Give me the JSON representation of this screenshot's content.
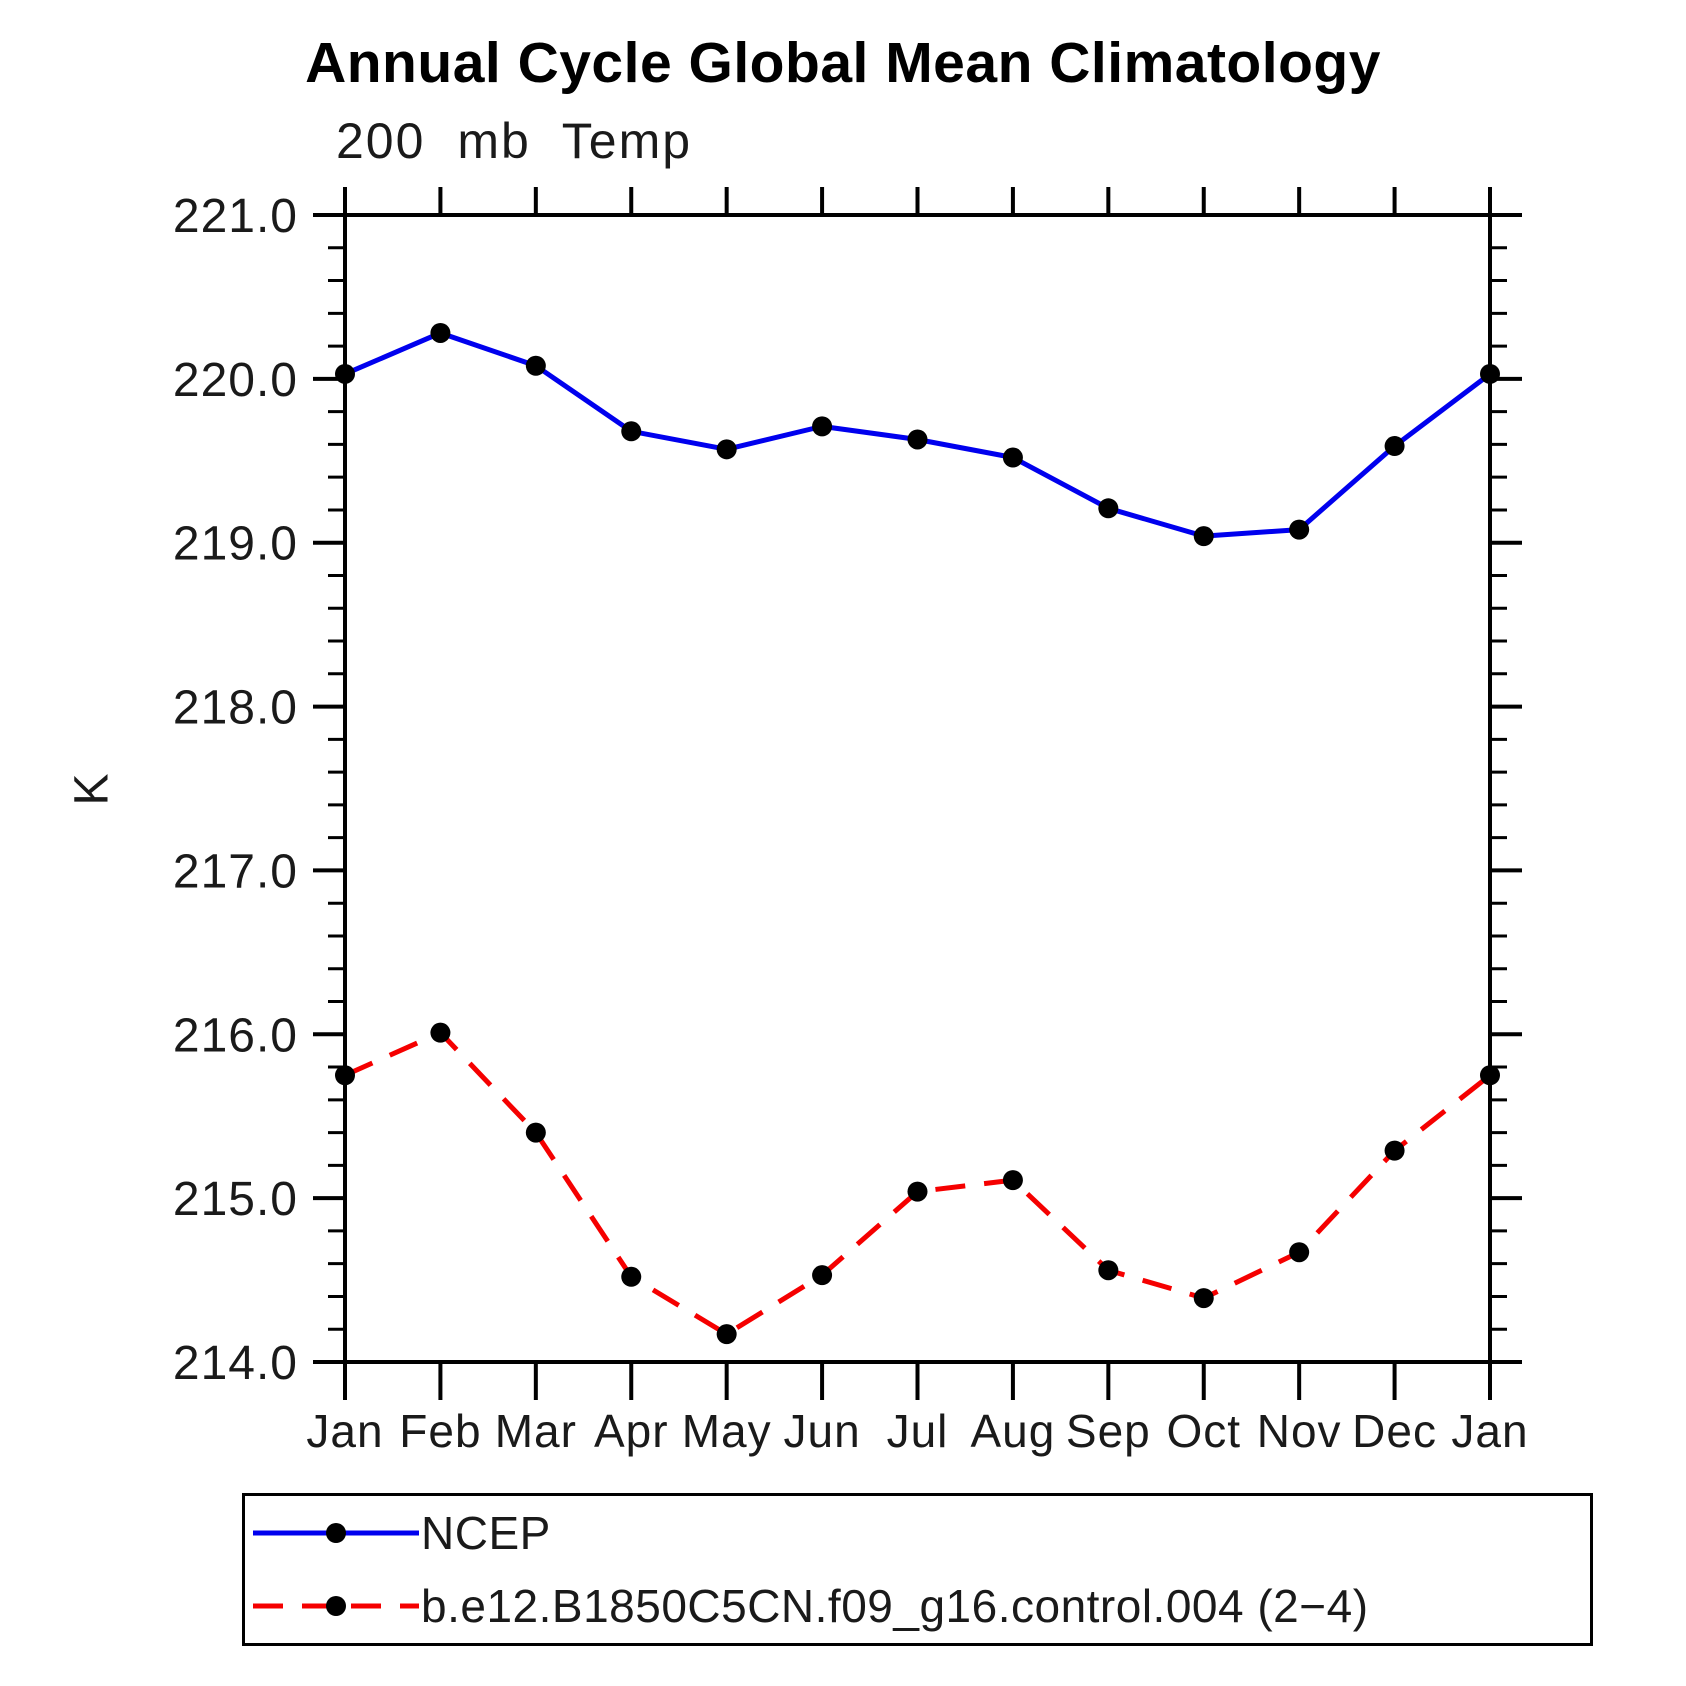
{
  "titles": {
    "main": "Annual Cycle Global Mean Climatology",
    "sub": "200 mb Temp",
    "y_axis": "K"
  },
  "legend": {
    "entries": [
      {
        "label": "NCEP",
        "color": "#0000ee",
        "style": "solid",
        "marker_color": "#000000"
      },
      {
        "label": "b.e12.B1850C5CN.f09_g16.control.004 (2−4)",
        "color": "#f50000",
        "style": "dashed",
        "marker_color": "#000000"
      }
    ]
  },
  "chart_data": {
    "type": "line",
    "title": "Annual Cycle Global Mean Climatology",
    "subtitle": "200 mb Temp",
    "ylabel": "K",
    "categories": [
      "Jan",
      "Feb",
      "Mar",
      "Apr",
      "May",
      "Jun",
      "Jul",
      "Aug",
      "Sep",
      "Oct",
      "Nov",
      "Dec",
      "Jan"
    ],
    "series": [
      {
        "name": "NCEP",
        "color": "#0000ee",
        "style": "solid",
        "marker": "filled-circle",
        "values": [
          220.03,
          220.28,
          220.08,
          219.68,
          219.57,
          219.71,
          219.63,
          219.52,
          219.21,
          219.04,
          219.08,
          219.59,
          220.03
        ]
      },
      {
        "name": "b.e12.B1850C5CN.f09_g16.control.004 (2−4)",
        "color": "#f50000",
        "style": "dashed",
        "marker": "filled-circle",
        "values": [
          215.75,
          216.01,
          215.4,
          214.52,
          214.17,
          214.53,
          215.04,
          215.11,
          214.56,
          214.39,
          214.67,
          215.29,
          215.75
        ]
      }
    ],
    "ylim": [
      214.0,
      221.0
    ],
    "ytick_major_step": 1.0,
    "ytick_minor_step": 0.2,
    "ytick_labels": [
      "221.0",
      "220.0",
      "219.0",
      "218.0",
      "217.0",
      "216.0",
      "215.0",
      "214.0"
    ],
    "grid": "off",
    "legend_position": "below-left-box"
  }
}
